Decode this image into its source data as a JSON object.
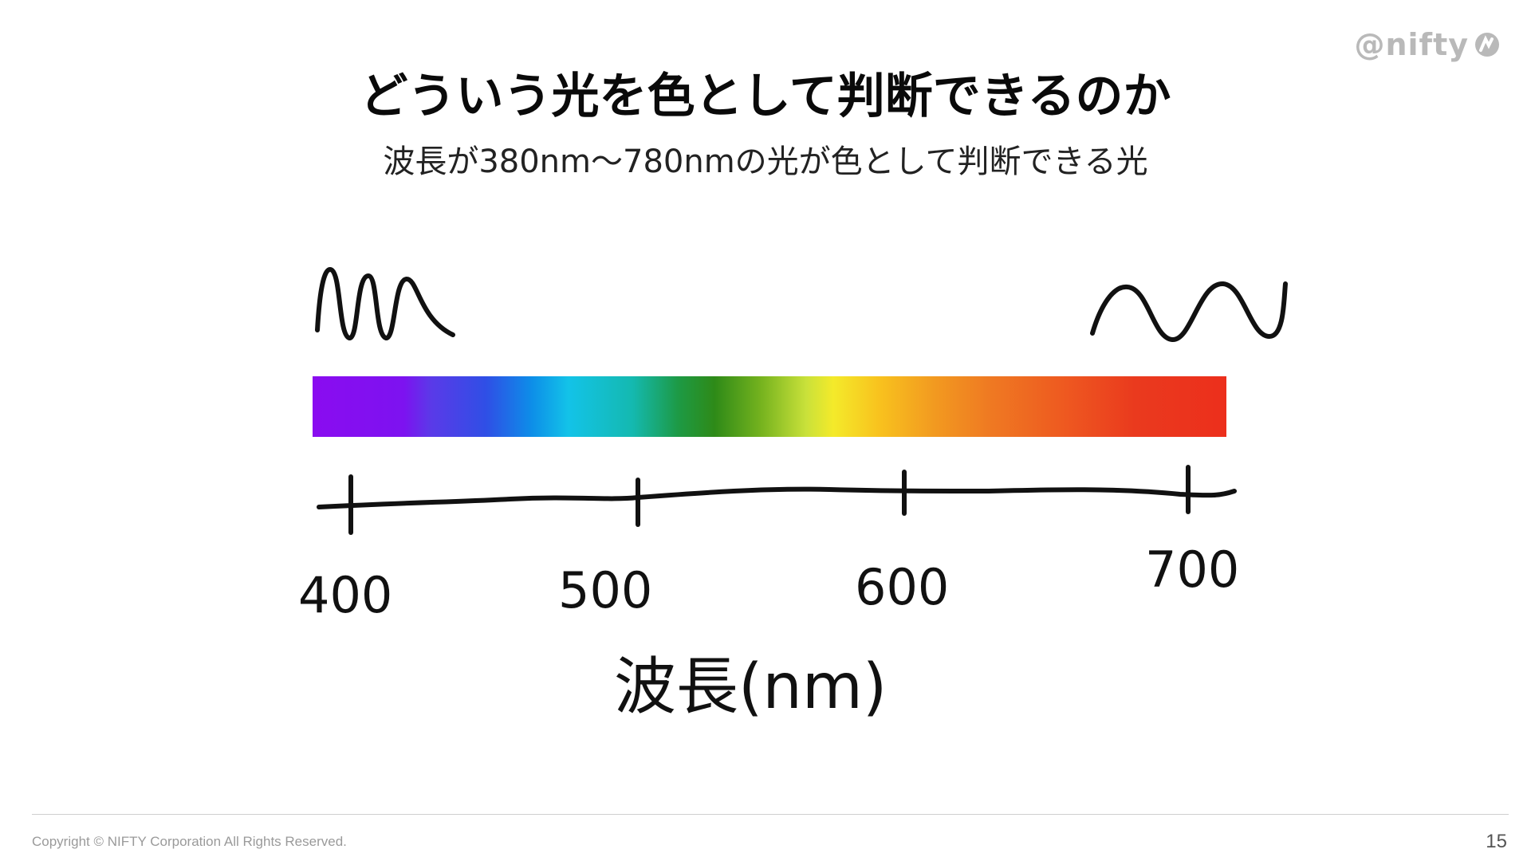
{
  "header": {
    "logo_text": "@nifty",
    "title": "どういう光を色として判断できるのか",
    "subtitle": "波長が380nm～780nmの光が色として判断できる光"
  },
  "diagram": {
    "axis_ticks": [
      "400",
      "500",
      "600",
      "700"
    ],
    "axis_label": "波長(nm)",
    "spectrum_colors": [
      "#8a0cf0",
      "#2f4fe6",
      "#13c3e8",
      "#2e8a18",
      "#f4ea2a",
      "#f29a20",
      "#ec2f1c"
    ],
    "waves": [
      "short-wavelength-wave-icon",
      "long-wavelength-wave-icon"
    ]
  },
  "footer": {
    "copyright": "Copyright © NIFTY Corporation All Rights Reserved.",
    "page_number": "15"
  }
}
